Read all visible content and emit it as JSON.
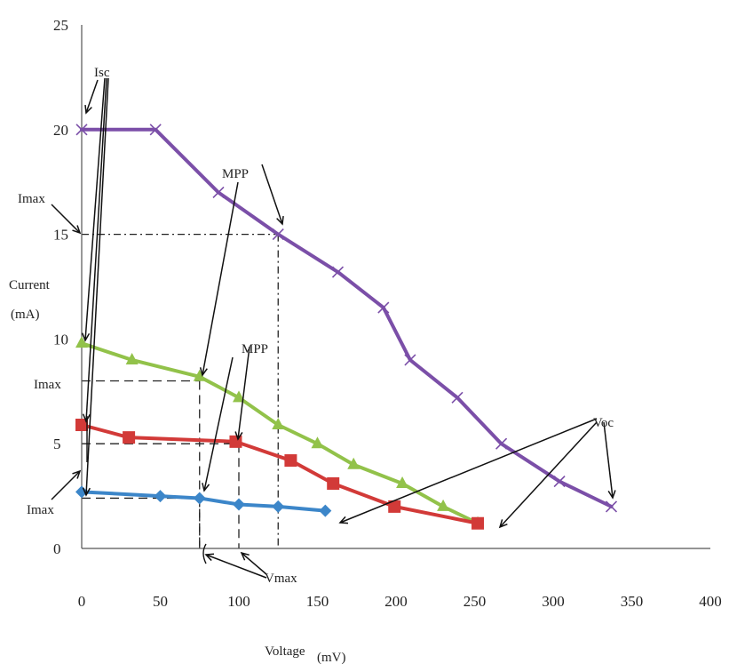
{
  "chart_data": {
    "type": "line",
    "xlabel": "Voltage",
    "xlabel_unit": "(mV)",
    "ylabel": "Current",
    "ylabel_unit": "(mA)",
    "xlim": [
      0,
      400
    ],
    "ylim": [
      0,
      25
    ],
    "xticks": [
      0,
      50,
      100,
      150,
      200,
      250,
      300,
      350,
      400
    ],
    "yticks": [
      0,
      5,
      10,
      15,
      20,
      25
    ],
    "grid": false,
    "legend": "none",
    "series": [
      {
        "color": "#7b4fa8",
        "marker": "x",
        "x": [
          0,
          47,
          87,
          125,
          163,
          192,
          209,
          239,
          267,
          304,
          337
        ],
        "y": [
          20,
          20,
          17,
          15,
          13.2,
          11.5,
          9,
          7.2,
          5,
          3.2,
          2
        ]
      },
      {
        "color": "#92c24a",
        "marker": "triangle",
        "x": [
          0,
          32,
          75,
          100,
          125,
          150,
          173,
          204,
          230,
          252
        ],
        "y": [
          9.8,
          9,
          8.2,
          7.2,
          5.9,
          5,
          4,
          3.1,
          2,
          1.2
        ]
      },
      {
        "color": "#d23a38",
        "marker": "square",
        "x": [
          0,
          30,
          98,
          133,
          160,
          199,
          252
        ],
        "y": [
          5.9,
          5.3,
          5.1,
          4.2,
          3.1,
          2,
          1.2
        ]
      },
      {
        "color": "#3c86c9",
        "marker": "diamond",
        "x": [
          0,
          50,
          75,
          100,
          125,
          155
        ],
        "y": [
          2.7,
          2.5,
          2.4,
          2.1,
          2,
          1.8
        ]
      }
    ],
    "mpp_guides": [
      {
        "x": 125,
        "y": 15,
        "style": "dashdot"
      },
      {
        "x": 75,
        "y": 8,
        "style": "dash"
      },
      {
        "x": 100,
        "y": 5,
        "style": "dash"
      },
      {
        "x": 75,
        "y": 2.4,
        "style": "dash"
      }
    ],
    "annotations": {
      "isc": "Isc",
      "imax": "Imax",
      "mpp": "MPP",
      "voc": "Voc",
      "vmax": "Vmax"
    }
  }
}
